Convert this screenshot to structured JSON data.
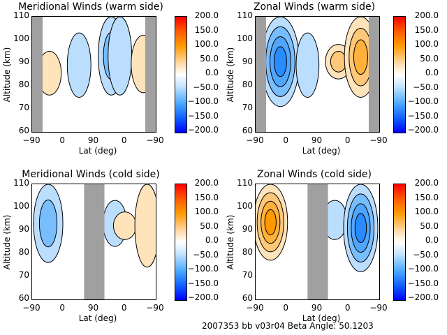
{
  "footer": {
    "text": "2007353 bb v03r04   Beta Angle: 50.1203"
  },
  "chart_data": [
    {
      "type": "heatmap",
      "title": "Meridional Winds (warm side)",
      "xlabel": "Lat (deg)",
      "ylabel": "Altitude (km)",
      "xtick_labels": [
        "-90",
        "0",
        "90",
        "0",
        "-90"
      ],
      "ytick_labels": [
        "60",
        "70",
        "80",
        "90",
        "100",
        "110"
      ],
      "ylim": [
        60,
        110
      ],
      "colorbar": {
        "ticks": [
          "200.0",
          "150.0",
          "100.0",
          "50.0",
          "0.0",
          "-50.0",
          "-100.0",
          "-150.0",
          "-200.0"
        ],
        "range": [
          -200,
          200
        ]
      },
      "no_data_regions_lat_frac": [
        [
          0.0,
          0.085
        ],
        [
          0.915,
          1.0
        ]
      ],
      "features": [
        {
          "lat_frac": 0.14,
          "alt": [
            76,
            95
          ],
          "value": 25
        },
        {
          "lat_frac": 0.38,
          "alt": [
            75,
            103
          ],
          "value": -25
        },
        {
          "lat_frac": 0.64,
          "alt": [
            76,
            110
          ],
          "value": -40
        },
        {
          "lat_frac": 0.71,
          "alt": [
            76,
            110
          ],
          "value": -25
        },
        {
          "lat_frac": 0.9,
          "alt": [
            77,
            102
          ],
          "value": 30
        }
      ]
    },
    {
      "type": "heatmap",
      "title": "Zonal Winds (warm side)",
      "xlabel": "Lat (deg)",
      "ylabel": "Altitude (km)",
      "xtick_labels": [
        "-90",
        "0",
        "90",
        "0",
        "-90"
      ],
      "ytick_labels": [
        "60",
        "70",
        "80",
        "90",
        "100",
        "110"
      ],
      "ylim": [
        60,
        110
      ],
      "colorbar": {
        "ticks": [
          "200.0",
          "150.0",
          "100.0",
          "50.0",
          "0.0",
          "-50.0",
          "-100.0",
          "-150.0",
          "-200.0"
        ],
        "range": [
          -200,
          200
        ]
      },
      "no_data_regions_lat_frac": [
        [
          0.0,
          0.085
        ],
        [
          0.915,
          1.0
        ]
      ],
      "features": [
        {
          "lat_frac": 0.2,
          "alt": [
            71,
            110
          ],
          "value": -110
        },
        {
          "lat_frac": 0.42,
          "alt": [
            75,
            103
          ],
          "value": -20
        },
        {
          "lat_frac": 0.67,
          "alt": [
            83,
            98
          ],
          "value": 40
        },
        {
          "lat_frac": 0.85,
          "alt": [
            75,
            110
          ],
          "value": 80
        }
      ]
    },
    {
      "type": "heatmap",
      "title": "Meridional Winds (cold side)",
      "xlabel": "Lat (deg)",
      "ylabel": "Altitude (km)",
      "xtick_labels": [
        "-90",
        "0",
        "90",
        "0",
        "-90"
      ],
      "ytick_labels": [
        "60",
        "70",
        "80",
        "90",
        "100",
        "110"
      ],
      "ylim": [
        60,
        110
      ],
      "colorbar": {
        "ticks": [
          "200.0",
          "150.0",
          "100.0",
          "50.0",
          "0.0",
          "-50.0",
          "-100.0",
          "-150.0",
          "-200.0"
        ],
        "range": [
          -200,
          200
        ]
      },
      "no_data_regions_lat_frac": [
        [
          0.42,
          0.585
        ]
      ],
      "features": [
        {
          "lat_frac": 0.13,
          "alt": [
            76,
            110
          ],
          "value": -60
        },
        {
          "lat_frac": 0.67,
          "alt": [
            83,
            103
          ],
          "value": -25
        },
        {
          "lat_frac": 0.75,
          "alt": [
            86,
            98
          ],
          "value": 20
        },
        {
          "lat_frac": 0.93,
          "alt": [
            74,
            110
          ],
          "value": 30
        }
      ]
    },
    {
      "type": "heatmap",
      "title": "Zonal Winds (cold side)",
      "xlabel": "Lat (deg)",
      "ylabel": "Altitude (km)",
      "xtick_labels": [
        "-90",
        "0",
        "90",
        "0",
        "-90"
      ],
      "ytick_labels": [
        "60",
        "70",
        "80",
        "90",
        "100",
        "110"
      ],
      "ylim": [
        60,
        110
      ],
      "colorbar": {
        "ticks": [
          "200.0",
          "150.0",
          "100.0",
          "50.0",
          "0.0",
          "-50.0",
          "-100.0",
          "-150.0",
          "-200.0"
        ],
        "range": [
          -200,
          200
        ]
      },
      "no_data_regions_lat_frac": [
        [
          0.42,
          0.585
        ]
      ],
      "features": [
        {
          "lat_frac": 0.12,
          "alt": [
            77,
            110
          ],
          "value": 90
        },
        {
          "lat_frac": 0.64,
          "alt": [
            86,
            103
          ],
          "value": -30
        },
        {
          "lat_frac": 0.85,
          "alt": [
            72,
            110
          ],
          "value": -90
        }
      ]
    }
  ]
}
